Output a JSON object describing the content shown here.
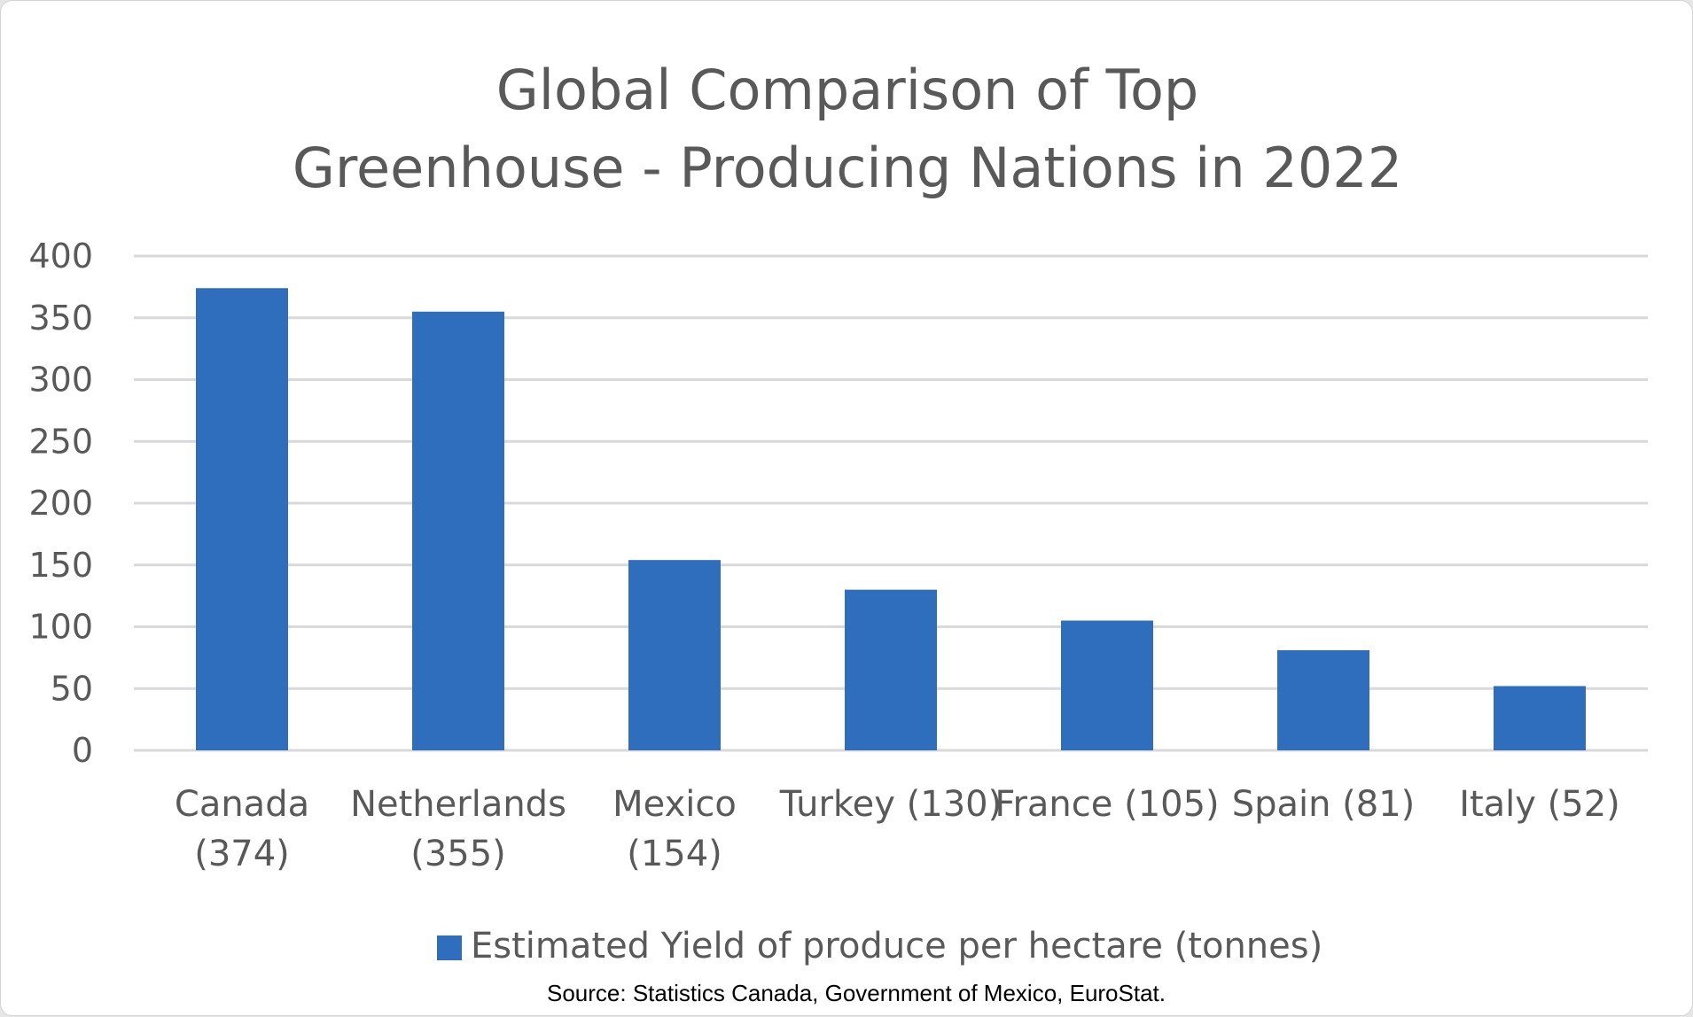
{
  "chart_data": {
    "type": "bar",
    "title": [
      "Global Comparison of Top",
      "Greenhouse - Producing Nations in 2022"
    ],
    "categories": [
      [
        "Canada",
        "(374)"
      ],
      [
        "Netherlands",
        "(355)"
      ],
      [
        "Mexico",
        "(154)"
      ],
      [
        "Turkey (130)"
      ],
      [
        "France (105)"
      ],
      [
        "Spain (81)"
      ],
      [
        "Italy (52)"
      ]
    ],
    "series": [
      {
        "name": "Estimated Yield of produce per hectare (tonnes)",
        "values": [
          374,
          355,
          154,
          130,
          105,
          81,
          52
        ]
      }
    ],
    "ylim": [
      0,
      400
    ],
    "yticks": [
      0,
      50,
      100,
      150,
      200,
      250,
      300,
      350,
      400
    ],
    "grid": true,
    "legend_position": "bottom",
    "source": "Source: Statistics Canada, Government of Mexico, EuroStat.",
    "colors": {
      "bar": "#2f6ebd",
      "grid": "#d9d9d9",
      "text": "#595959"
    }
  }
}
